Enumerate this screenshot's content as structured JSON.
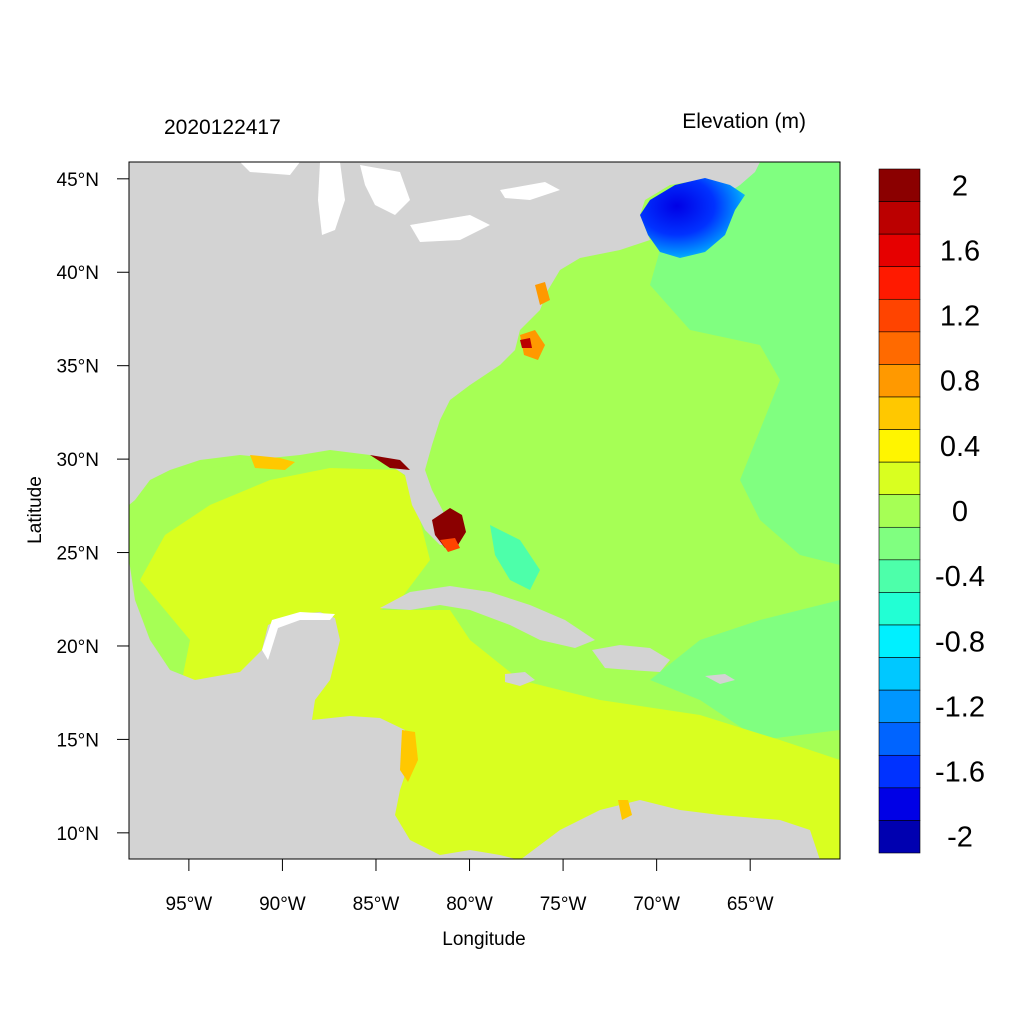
{
  "header": {
    "timestamp": "2020122417",
    "variable": "Elevation (m)"
  },
  "axes": {
    "xlabel": "Longitude",
    "ylabel": "Latitude",
    "lon_range": [
      -98.2,
      -60.2
    ],
    "lat_range": [
      8.6,
      45.9
    ],
    "lon_ticks": [
      {
        "value": -95,
        "label": "95°W"
      },
      {
        "value": -90,
        "label": "90°W"
      },
      {
        "value": -85,
        "label": "85°W"
      },
      {
        "value": -80,
        "label": "80°W"
      },
      {
        "value": -75,
        "label": "75°W"
      },
      {
        "value": -70,
        "label": "70°W"
      },
      {
        "value": -65,
        "label": "65°W"
      }
    ],
    "lat_ticks": [
      {
        "value": 45,
        "label": "45°N"
      },
      {
        "value": 40,
        "label": "40°N"
      },
      {
        "value": 35,
        "label": "35°N"
      },
      {
        "value": 30,
        "label": "30°N"
      },
      {
        "value": 25,
        "label": "25°N"
      },
      {
        "value": 20,
        "label": "20°N"
      },
      {
        "value": 15,
        "label": "15°N"
      },
      {
        "value": 10,
        "label": "10°N"
      }
    ]
  },
  "colorbar": {
    "colors": [
      "#8b0000",
      "#bb0000",
      "#e60000",
      "#ff1a00",
      "#ff4400",
      "#ff6a00",
      "#ff9900",
      "#ffc800",
      "#fff500",
      "#d9ff20",
      "#a6ff55",
      "#80ff80",
      "#4dffaa",
      "#22ffd4",
      "#00f0ff",
      "#00c8ff",
      "#0096ff",
      "#0064ff",
      "#0032ff",
      "#0000e6",
      "#0000b0"
    ],
    "labels": [
      {
        "value": "2",
        "step": 1
      },
      {
        "value": "1.6",
        "step": 3
      },
      {
        "value": "1.2",
        "step": 5
      },
      {
        "value": "0.8",
        "step": 7
      },
      {
        "value": "0.4",
        "step": 9
      },
      {
        "value": "0",
        "step": 11
      },
      {
        "value": "-0.4",
        "step": 13
      },
      {
        "value": "-0.8",
        "step": 15
      },
      {
        "value": "-1.2",
        "step": 17
      },
      {
        "value": "-1.6",
        "step": 19
      },
      {
        "value": "-2",
        "step": 21
      }
    ]
  },
  "map_colors": {
    "land": "#d3d3d3",
    "ocean_base": "#a6ff55",
    "ocean_neg": "#80ff80",
    "gulf_carib": "#d9ff20",
    "surge_high": "#8b0000",
    "surge_low": "#0032ff"
  }
}
